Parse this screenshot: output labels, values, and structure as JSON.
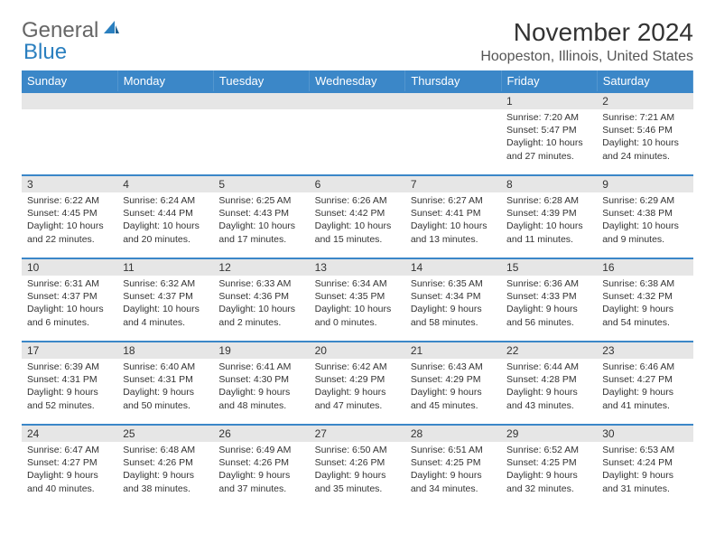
{
  "logo": {
    "text1": "General",
    "text2": "Blue"
  },
  "title": "November 2024",
  "location": "Hoopeston, Illinois, United States",
  "weekdays": [
    "Sunday",
    "Monday",
    "Tuesday",
    "Wednesday",
    "Thursday",
    "Friday",
    "Saturday"
  ],
  "colors": {
    "header_bg": "#3b87c8",
    "header_text": "#ffffff",
    "daynum_bg": "#e6e6e6",
    "divider": "#3b87c8",
    "logo_blue": "#2a7fbf"
  },
  "weeks": [
    [
      {
        "empty": true
      },
      {
        "empty": true
      },
      {
        "empty": true
      },
      {
        "empty": true
      },
      {
        "empty": true
      },
      {
        "n": "1",
        "sunrise": "7:20 AM",
        "sunset": "5:47 PM",
        "daylight": "10 hours and 27 minutes."
      },
      {
        "n": "2",
        "sunrise": "7:21 AM",
        "sunset": "5:46 PM",
        "daylight": "10 hours and 24 minutes."
      }
    ],
    [
      {
        "n": "3",
        "sunrise": "6:22 AM",
        "sunset": "4:45 PM",
        "daylight": "10 hours and 22 minutes."
      },
      {
        "n": "4",
        "sunrise": "6:24 AM",
        "sunset": "4:44 PM",
        "daylight": "10 hours and 20 minutes."
      },
      {
        "n": "5",
        "sunrise": "6:25 AM",
        "sunset": "4:43 PM",
        "daylight": "10 hours and 17 minutes."
      },
      {
        "n": "6",
        "sunrise": "6:26 AM",
        "sunset": "4:42 PM",
        "daylight": "10 hours and 15 minutes."
      },
      {
        "n": "7",
        "sunrise": "6:27 AM",
        "sunset": "4:41 PM",
        "daylight": "10 hours and 13 minutes."
      },
      {
        "n": "8",
        "sunrise": "6:28 AM",
        "sunset": "4:39 PM",
        "daylight": "10 hours and 11 minutes."
      },
      {
        "n": "9",
        "sunrise": "6:29 AM",
        "sunset": "4:38 PM",
        "daylight": "10 hours and 9 minutes."
      }
    ],
    [
      {
        "n": "10",
        "sunrise": "6:31 AM",
        "sunset": "4:37 PM",
        "daylight": "10 hours and 6 minutes."
      },
      {
        "n": "11",
        "sunrise": "6:32 AM",
        "sunset": "4:37 PM",
        "daylight": "10 hours and 4 minutes."
      },
      {
        "n": "12",
        "sunrise": "6:33 AM",
        "sunset": "4:36 PM",
        "daylight": "10 hours and 2 minutes."
      },
      {
        "n": "13",
        "sunrise": "6:34 AM",
        "sunset": "4:35 PM",
        "daylight": "10 hours and 0 minutes."
      },
      {
        "n": "14",
        "sunrise": "6:35 AM",
        "sunset": "4:34 PM",
        "daylight": "9 hours and 58 minutes."
      },
      {
        "n": "15",
        "sunrise": "6:36 AM",
        "sunset": "4:33 PM",
        "daylight": "9 hours and 56 minutes."
      },
      {
        "n": "16",
        "sunrise": "6:38 AM",
        "sunset": "4:32 PM",
        "daylight": "9 hours and 54 minutes."
      }
    ],
    [
      {
        "n": "17",
        "sunrise": "6:39 AM",
        "sunset": "4:31 PM",
        "daylight": "9 hours and 52 minutes."
      },
      {
        "n": "18",
        "sunrise": "6:40 AM",
        "sunset": "4:31 PM",
        "daylight": "9 hours and 50 minutes."
      },
      {
        "n": "19",
        "sunrise": "6:41 AM",
        "sunset": "4:30 PM",
        "daylight": "9 hours and 48 minutes."
      },
      {
        "n": "20",
        "sunrise": "6:42 AM",
        "sunset": "4:29 PM",
        "daylight": "9 hours and 47 minutes."
      },
      {
        "n": "21",
        "sunrise": "6:43 AM",
        "sunset": "4:29 PM",
        "daylight": "9 hours and 45 minutes."
      },
      {
        "n": "22",
        "sunrise": "6:44 AM",
        "sunset": "4:28 PM",
        "daylight": "9 hours and 43 minutes."
      },
      {
        "n": "23",
        "sunrise": "6:46 AM",
        "sunset": "4:27 PM",
        "daylight": "9 hours and 41 minutes."
      }
    ],
    [
      {
        "n": "24",
        "sunrise": "6:47 AM",
        "sunset": "4:27 PM",
        "daylight": "9 hours and 40 minutes."
      },
      {
        "n": "25",
        "sunrise": "6:48 AM",
        "sunset": "4:26 PM",
        "daylight": "9 hours and 38 minutes."
      },
      {
        "n": "26",
        "sunrise": "6:49 AM",
        "sunset": "4:26 PM",
        "daylight": "9 hours and 37 minutes."
      },
      {
        "n": "27",
        "sunrise": "6:50 AM",
        "sunset": "4:26 PM",
        "daylight": "9 hours and 35 minutes."
      },
      {
        "n": "28",
        "sunrise": "6:51 AM",
        "sunset": "4:25 PM",
        "daylight": "9 hours and 34 minutes."
      },
      {
        "n": "29",
        "sunrise": "6:52 AM",
        "sunset": "4:25 PM",
        "daylight": "9 hours and 32 minutes."
      },
      {
        "n": "30",
        "sunrise": "6:53 AM",
        "sunset": "4:24 PM",
        "daylight": "9 hours and 31 minutes."
      }
    ]
  ]
}
